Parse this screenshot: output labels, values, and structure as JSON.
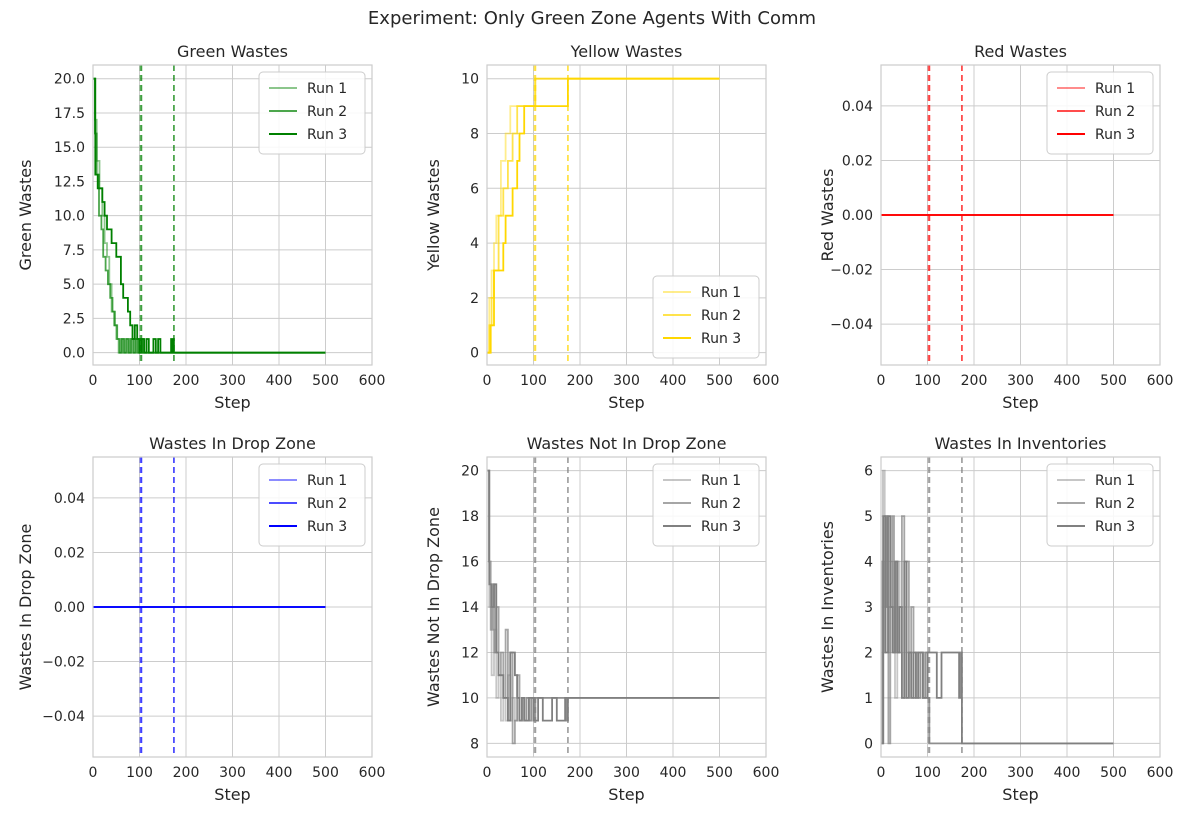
{
  "title": "Experiment: Only Green Zone Agents With Comm",
  "chart_data": [
    {
      "type": "line",
      "title": "Green Wastes",
      "xlabel": "Step",
      "ylabel": "Green Wastes",
      "xlim": [
        0,
        600
      ],
      "ylim": [
        -0.9,
        21
      ],
      "xticks": [
        0,
        100,
        200,
        300,
        400,
        500,
        600
      ],
      "yticks": [
        "0.0",
        "2.5",
        "5.0",
        "7.5",
        "10.0",
        "12.5",
        "15.0",
        "17.5",
        "20.0"
      ],
      "color": "#008000",
      "legend": "top-right",
      "grid": true,
      "vlines": [
        102,
        104,
        174
      ],
      "series": [
        {
          "name": "Run 1",
          "alpha": 0.45,
          "x": [
            0,
            4,
            8,
            14,
            20,
            25,
            30,
            35,
            40,
            45,
            50,
            55,
            60,
            65,
            70,
            75,
            80,
            85,
            90,
            95,
            100,
            103,
            500
          ],
          "y": [
            20,
            17,
            14,
            12,
            10,
            8,
            7,
            5,
            3,
            2,
            1,
            0,
            1,
            0,
            1,
            0,
            1,
            0,
            1,
            0,
            1,
            0,
            0
          ]
        },
        {
          "name": "Run 2",
          "alpha": 0.7,
          "x": [
            0,
            4,
            8,
            13,
            18,
            22,
            27,
            32,
            37,
            42,
            47,
            52,
            57,
            62,
            67,
            72,
            77,
            82,
            87,
            92,
            97,
            102,
            108,
            500
          ],
          "y": [
            20,
            16,
            13,
            10,
            9,
            7,
            6,
            5,
            4,
            3,
            2,
            1,
            0,
            1,
            0,
            1,
            0,
            1,
            0,
            1,
            0,
            1,
            0,
            0
          ]
        },
        {
          "name": "Run 3",
          "alpha": 1.0,
          "x": [
            0,
            5,
            10,
            15,
            20,
            25,
            30,
            40,
            45,
            50,
            55,
            60,
            65,
            70,
            75,
            80,
            85,
            90,
            95,
            100,
            105,
            110,
            115,
            120,
            125,
            130,
            135,
            140,
            145,
            150,
            155,
            160,
            165,
            168,
            170,
            172,
            174,
            500
          ],
          "y": [
            20,
            13,
            12,
            12,
            11,
            10,
            9,
            8,
            8,
            7,
            7,
            5,
            4,
            4,
            3,
            2,
            1,
            2,
            1,
            0,
            1,
            0,
            1,
            0,
            0,
            1,
            0,
            1,
            0,
            0,
            0,
            0,
            0,
            1,
            0,
            1,
            0,
            0
          ]
        }
      ]
    },
    {
      "type": "line",
      "title": "Yellow Wastes",
      "xlabel": "Step",
      "ylabel": "Yellow Wastes",
      "xlim": [
        0,
        600
      ],
      "ylim": [
        -0.45,
        10.5
      ],
      "xticks": [
        0,
        100,
        200,
        300,
        400,
        500,
        600
      ],
      "yticks": [
        "0",
        "2",
        "4",
        "6",
        "8",
        "10"
      ],
      "color": "#ffd700",
      "legend": "bottom-right",
      "grid": true,
      "vlines": [
        102,
        104,
        174
      ],
      "series": [
        {
          "name": "Run 1",
          "alpha": 0.45,
          "x": [
            0,
            5,
            10,
            15,
            20,
            30,
            40,
            50,
            60,
            75,
            103,
            500
          ],
          "y": [
            0,
            2,
            3,
            4,
            5,
            7,
            8,
            9,
            9,
            9,
            10,
            10
          ]
        },
        {
          "name": "Run 2",
          "alpha": 0.7,
          "x": [
            0,
            5,
            10,
            15,
            25,
            35,
            45,
            55,
            65,
            85,
            104,
            500
          ],
          "y": [
            0,
            1,
            2,
            3,
            5,
            6,
            7,
            8,
            9,
            9,
            10,
            10
          ]
        },
        {
          "name": "Run 3",
          "alpha": 1.0,
          "x": [
            0,
            8,
            15,
            30,
            35,
            40,
            45,
            55,
            60,
            65,
            70,
            75,
            80,
            90,
            100,
            120,
            140,
            160,
            174,
            500
          ],
          "y": [
            0,
            1,
            3,
            3,
            4,
            5,
            5,
            6,
            6,
            7,
            8,
            8,
            9,
            9,
            9,
            9,
            9,
            9,
            10,
            10
          ]
        }
      ]
    },
    {
      "type": "line",
      "title": "Red Wastes",
      "xlabel": "Step",
      "ylabel": "Red Wastes",
      "xlim": [
        0,
        600
      ],
      "ylim": [
        -0.055,
        0.055
      ],
      "xticks": [
        0,
        100,
        200,
        300,
        400,
        500,
        600
      ],
      "yticks": [
        "−0.04",
        "−0.02",
        "0.00",
        "0.02",
        "0.04"
      ],
      "color": "#ff0000",
      "legend": "top-right",
      "grid": true,
      "vlines": [
        102,
        104,
        174
      ],
      "series": [
        {
          "name": "Run 1",
          "alpha": 0.45,
          "x": [
            0,
            500
          ],
          "y": [
            0,
            0
          ]
        },
        {
          "name": "Run 2",
          "alpha": 0.7,
          "x": [
            0,
            500
          ],
          "y": [
            0,
            0
          ]
        },
        {
          "name": "Run 3",
          "alpha": 1.0,
          "x": [
            0,
            500
          ],
          "y": [
            0,
            0
          ]
        }
      ]
    },
    {
      "type": "line",
      "title": "Wastes In Drop Zone",
      "xlabel": "Step",
      "ylabel": "Wastes In Drop Zone",
      "xlim": [
        0,
        600
      ],
      "ylim": [
        -0.055,
        0.055
      ],
      "xticks": [
        0,
        100,
        200,
        300,
        400,
        500,
        600
      ],
      "yticks": [
        "−0.04",
        "−0.02",
        "0.00",
        "0.02",
        "0.04"
      ],
      "color": "#0000ff",
      "legend": "top-right",
      "grid": true,
      "vlines": [
        102,
        104,
        174
      ],
      "series": [
        {
          "name": "Run 1",
          "alpha": 0.45,
          "x": [
            0,
            500
          ],
          "y": [
            0,
            0
          ]
        },
        {
          "name": "Run 2",
          "alpha": 0.7,
          "x": [
            0,
            500
          ],
          "y": [
            0,
            0
          ]
        },
        {
          "name": "Run 3",
          "alpha": 1.0,
          "x": [
            0,
            500
          ],
          "y": [
            0,
            0
          ]
        }
      ]
    },
    {
      "type": "line",
      "title": "Wastes Not In Drop Zone",
      "xlabel": "Step",
      "ylabel": "Wastes Not In Drop Zone",
      "xlim": [
        0,
        600
      ],
      "ylim": [
        7.4,
        20.6
      ],
      "xticks": [
        0,
        100,
        200,
        300,
        400,
        500,
        600
      ],
      "yticks": [
        "8",
        "10",
        "12",
        "14",
        "16",
        "18",
        "20"
      ],
      "color": "#808080",
      "legend": "top-right",
      "grid": true,
      "vlines": [
        102,
        104,
        174
      ],
      "series": [
        {
          "name": "Run 1",
          "alpha": 0.45,
          "x": [
            0,
            5,
            10,
            15,
            20,
            25,
            30,
            35,
            40,
            45,
            50,
            55,
            60,
            65,
            70,
            75,
            80,
            85,
            90,
            95,
            100,
            103,
            500
          ],
          "y": [
            20,
            14,
            11,
            13,
            10,
            11,
            9,
            10,
            9,
            11,
            9,
            10,
            9,
            10,
            9,
            10,
            9,
            10,
            9,
            10,
            9,
            10,
            10
          ]
        },
        {
          "name": "Run 2",
          "alpha": 0.7,
          "x": [
            0,
            4,
            8,
            12,
            16,
            20,
            25,
            30,
            35,
            40,
            45,
            50,
            55,
            60,
            65,
            70,
            75,
            80,
            85,
            90,
            95,
            100,
            104,
            500
          ],
          "y": [
            20,
            16,
            13,
            15,
            12,
            14,
            11,
            12,
            10,
            13,
            9,
            12,
            8,
            9,
            11,
            9,
            10,
            9,
            10,
            9,
            10,
            9,
            10,
            10
          ]
        },
        {
          "name": "Run 3",
          "alpha": 1.0,
          "x": [
            0,
            5,
            10,
            15,
            20,
            25,
            30,
            35,
            40,
            45,
            50,
            55,
            60,
            65,
            70,
            75,
            80,
            90,
            100,
            110,
            120,
            130,
            140,
            150,
            160,
            168,
            172,
            174,
            500
          ],
          "y": [
            20,
            15,
            14,
            15,
            12,
            11,
            11,
            10,
            10,
            9,
            12,
            12,
            11,
            10,
            9,
            10,
            9,
            10,
            9,
            10,
            9,
            9,
            10,
            9,
            9,
            10,
            9,
            10,
            10
          ]
        }
      ]
    },
    {
      "type": "line",
      "title": "Wastes In Inventories",
      "xlabel": "Step",
      "ylabel": "Wastes In Inventories",
      "xlim": [
        0,
        600
      ],
      "ylim": [
        -0.3,
        6.3
      ],
      "xticks": [
        0,
        100,
        200,
        300,
        400,
        500,
        600
      ],
      "yticks": [
        "0",
        "1",
        "2",
        "3",
        "4",
        "5",
        "6"
      ],
      "color": "#808080",
      "legend": "top-right",
      "grid": true,
      "vlines": [
        102,
        104,
        174
      ],
      "series": [
        {
          "name": "Run 1",
          "alpha": 0.45,
          "x": [
            0,
            4,
            8,
            12,
            16,
            20,
            25,
            30,
            35,
            40,
            45,
            50,
            55,
            60,
            65,
            70,
            75,
            80,
            85,
            90,
            95,
            100,
            103,
            500
          ],
          "y": [
            0,
            6,
            3,
            5,
            2,
            4,
            3,
            1,
            4,
            2,
            1,
            3,
            2,
            1,
            2,
            1,
            2,
            1,
            2,
            1,
            2,
            1,
            0,
            0
          ]
        },
        {
          "name": "Run 2",
          "alpha": 0.7,
          "x": [
            0,
            3,
            6,
            9,
            12,
            16,
            20,
            24,
            28,
            32,
            36,
            40,
            45,
            50,
            55,
            60,
            65,
            70,
            75,
            80,
            85,
            90,
            95,
            100,
            104,
            500
          ],
          "y": [
            0,
            4,
            2,
            5,
            3,
            0,
            3,
            5,
            2,
            4,
            2,
            3,
            5,
            1,
            4,
            2,
            3,
            1,
            2,
            1,
            2,
            1,
            2,
            1,
            0,
            0
          ]
        },
        {
          "name": "Run 3",
          "alpha": 1.0,
          "x": [
            0,
            5,
            10,
            15,
            20,
            25,
            30,
            35,
            40,
            45,
            50,
            55,
            60,
            65,
            70,
            75,
            80,
            90,
            100,
            110,
            120,
            130,
            140,
            150,
            160,
            168,
            172,
            174,
            500
          ],
          "y": [
            0,
            5,
            2,
            5,
            3,
            2,
            4,
            2,
            3,
            1,
            4,
            1,
            2,
            1,
            2,
            1,
            2,
            1,
            2,
            2,
            1,
            2,
            2,
            2,
            2,
            1,
            2,
            0,
            0
          ]
        }
      ]
    }
  ]
}
